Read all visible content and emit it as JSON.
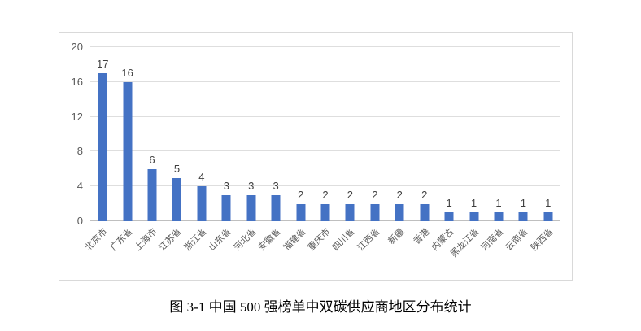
{
  "figure": {
    "caption": "图 3-1  中国 500 强榜单中双碳供应商地区分布统计"
  },
  "chart_data": {
    "type": "bar",
    "title": "",
    "categories": [
      "北京市",
      "广东省",
      "上海市",
      "江苏省",
      "浙江省",
      "山东省",
      "河北省",
      "安徽省",
      "福建省",
      "重庆市",
      "四川省",
      "江西省",
      "新疆",
      "香港",
      "内蒙古",
      "黑龙江省",
      "河南省",
      "云南省",
      "陕西省"
    ],
    "values": [
      17,
      16,
      6,
      5,
      4,
      3,
      3,
      3,
      2,
      2,
      2,
      2,
      2,
      2,
      1,
      1,
      1,
      1,
      1
    ],
    "xlabel": "",
    "ylabel": "",
    "ylim": [
      0,
      20
    ],
    "yticks": [
      0,
      4,
      8,
      12,
      16,
      20
    ],
    "grid": true,
    "legend": false,
    "data_labels": true,
    "bar_color": "#4472c4"
  },
  "colors": {
    "background": "#ffffff",
    "frame_border": "#d9d9d9",
    "gridline": "#dedede",
    "axis_line": "#bfbfbf",
    "tick_label": "#595959",
    "data_label": "#3f3f3f",
    "caption": "#000000"
  }
}
